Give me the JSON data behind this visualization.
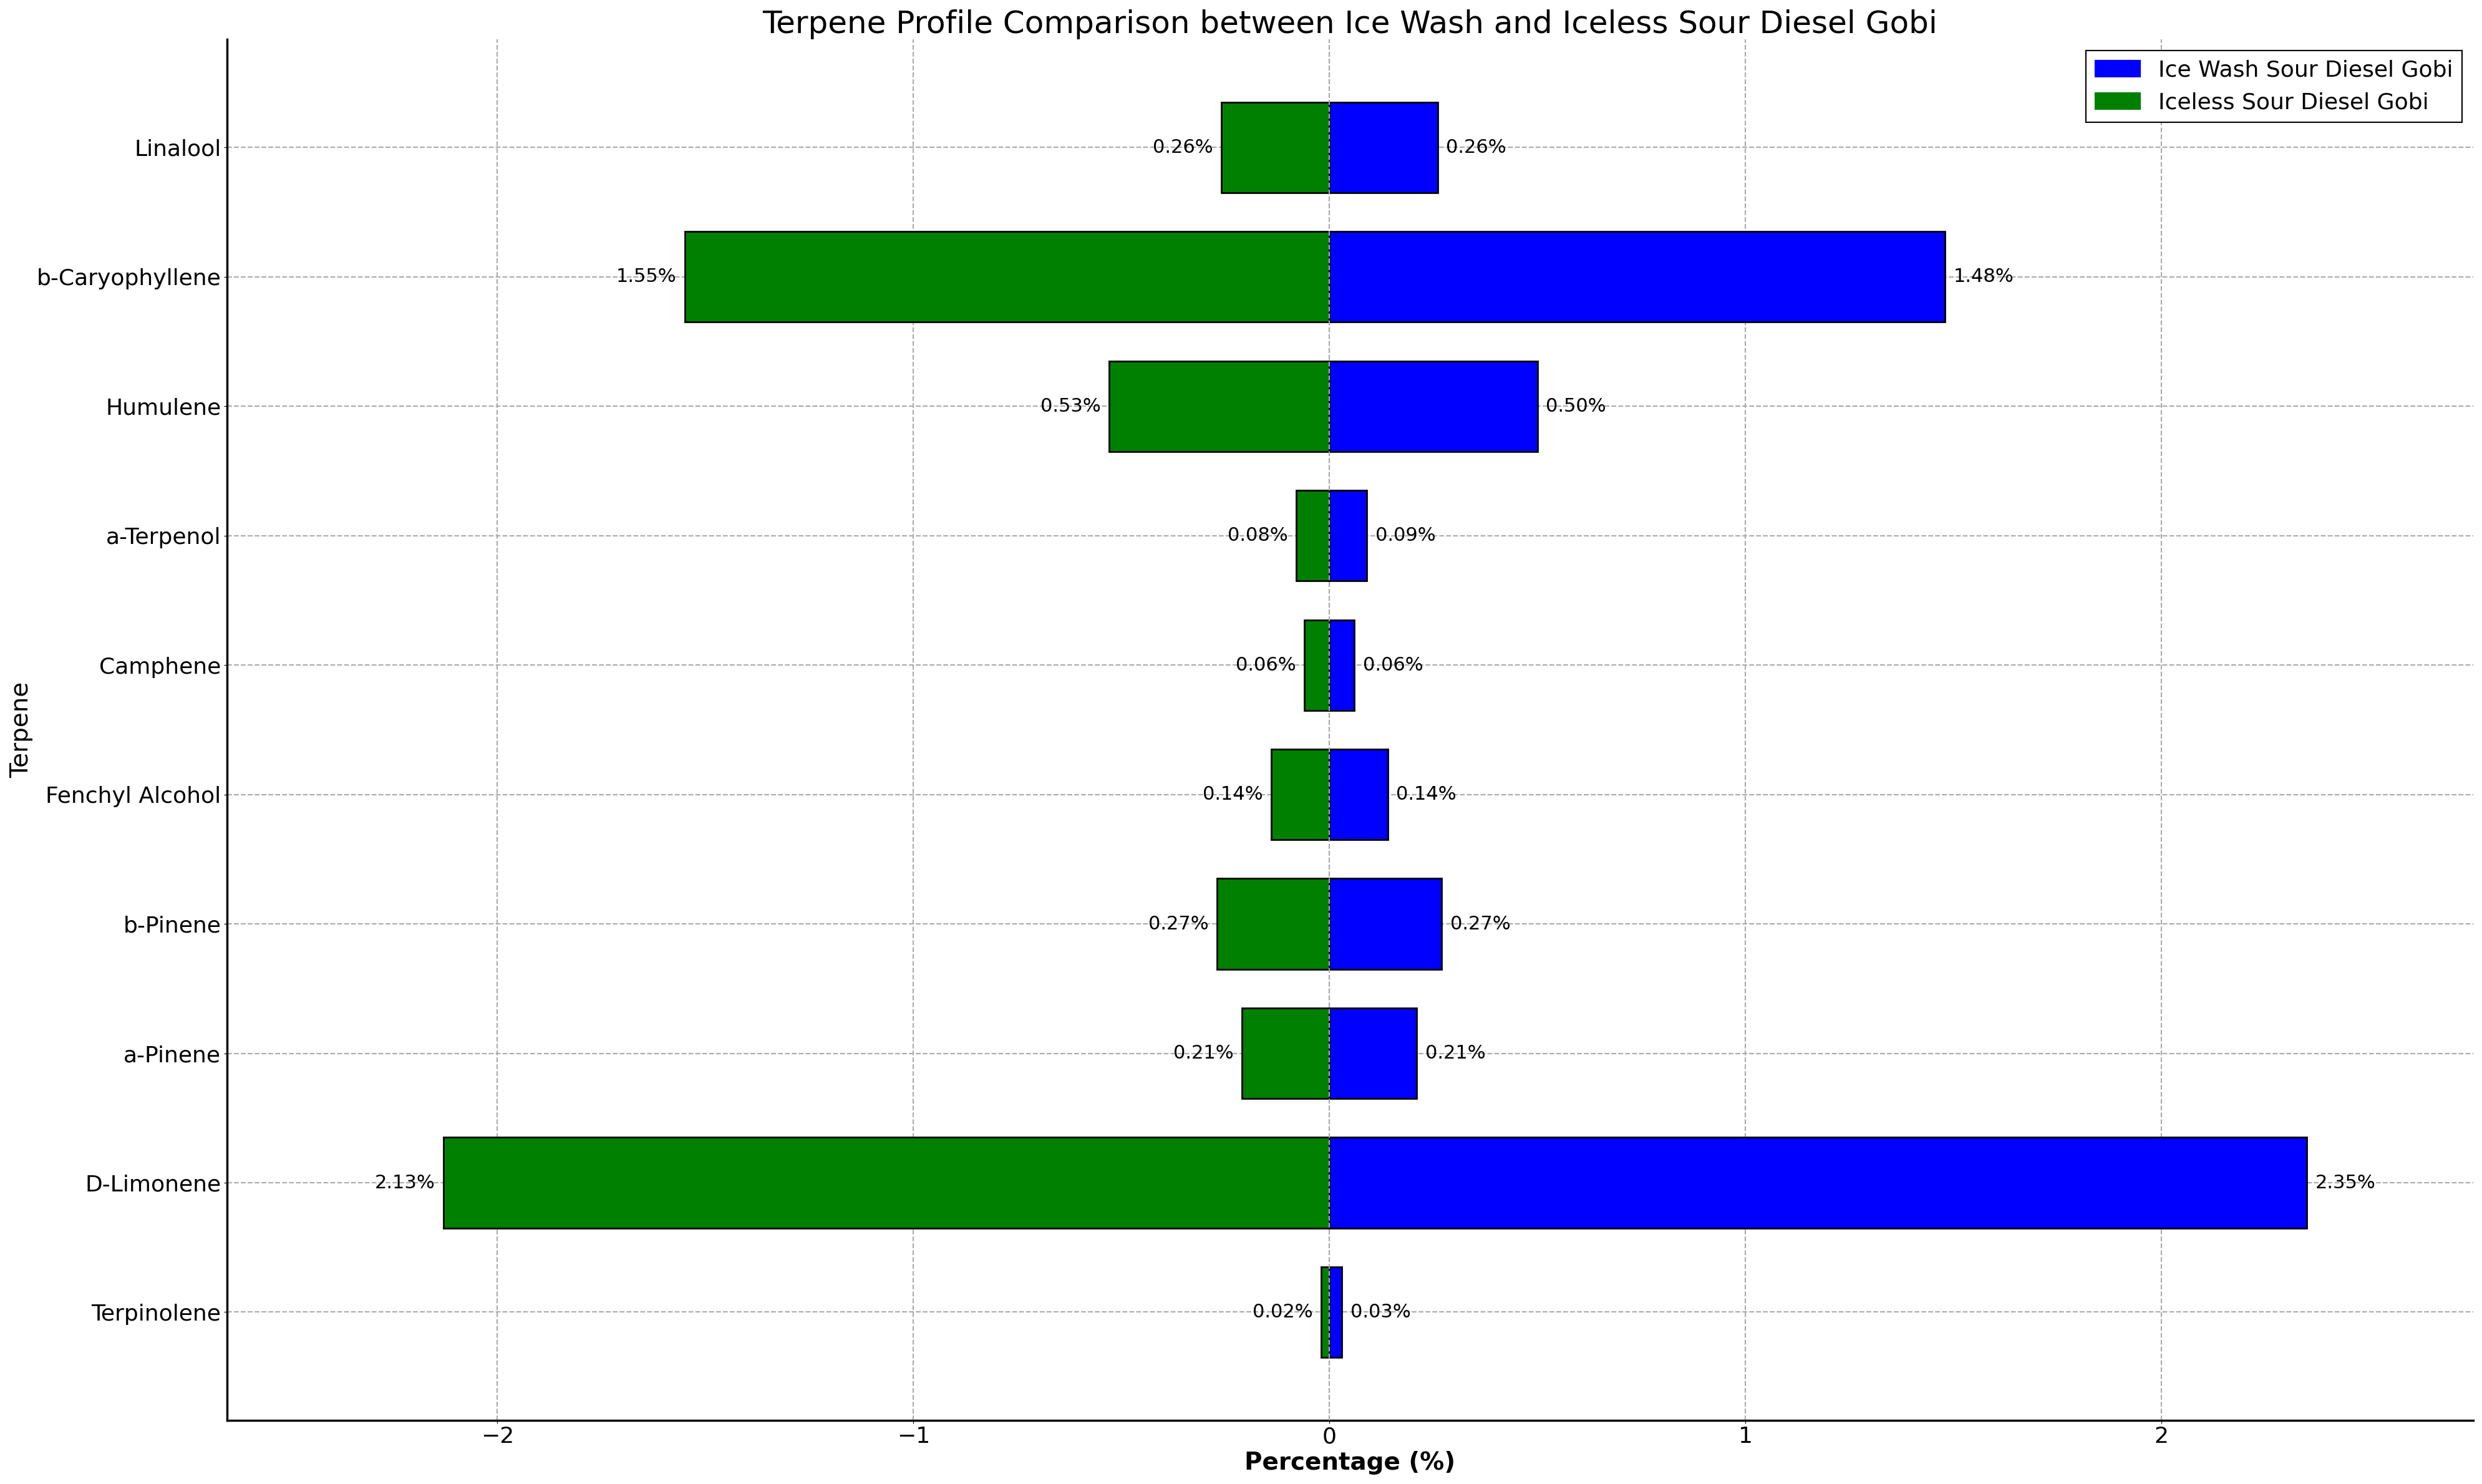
{
  "title": "Terpene Profile Comparison between Ice Wash and Iceless Sour Diesel Gobi",
  "xlabel": "Percentage (%)",
  "ylabel": "Terpene",
  "terpenes": [
    "Terpinolene",
    "D-Limonene",
    "a-Pinene",
    "b-Pinene",
    "Fenchyl Alcohol",
    "Camphene",
    "a-Terpenol",
    "Humulene",
    "b-Caryophyllene",
    "Linalool"
  ],
  "ice_wash_values": [
    0.03,
    2.35,
    0.21,
    0.27,
    0.14,
    0.06,
    0.09,
    0.5,
    1.48,
    0.26
  ],
  "iceless_values": [
    0.02,
    2.13,
    0.21,
    0.27,
    0.14,
    0.06,
    0.08,
    0.53,
    1.55,
    0.26
  ],
  "ice_wash_color": "#0000ff",
  "iceless_color": "#008000",
  "legend_labels": [
    "Ice Wash Sour Diesel Gobi",
    "Iceless Sour Diesel Gobi"
  ],
  "xlim": [
    -2.65,
    2.75
  ],
  "bar_height": 0.7,
  "background_color": "#ffffff",
  "grid_color": "#aaaaaa",
  "title_fontsize": 36,
  "label_fontsize": 28,
  "tick_fontsize": 26,
  "annotation_fontsize": 22,
  "legend_fontsize": 26
}
